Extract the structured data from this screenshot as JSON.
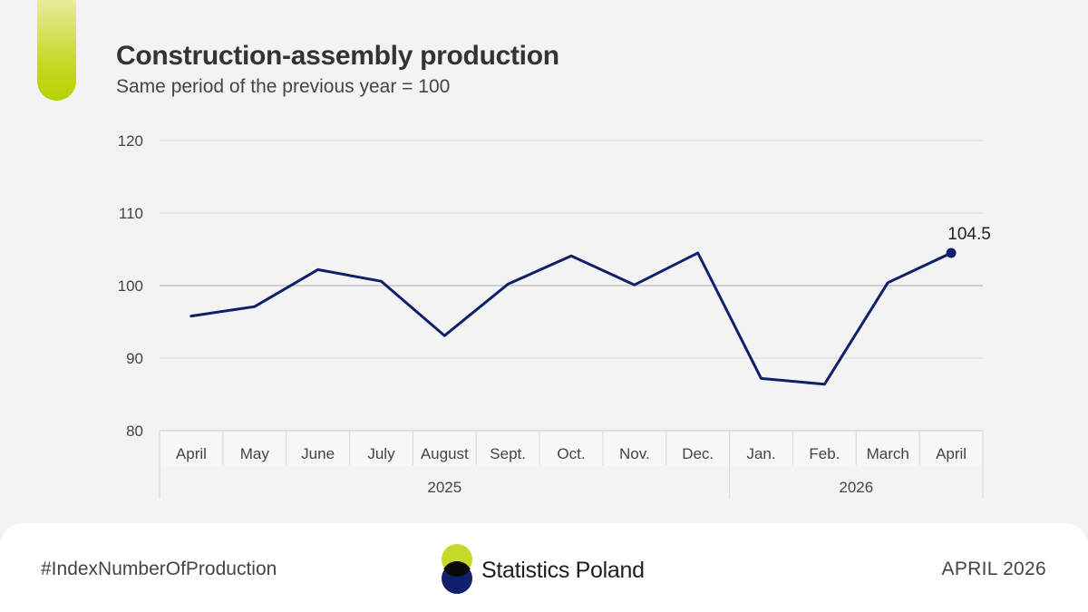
{
  "header": {
    "title": "Construction-assembly production",
    "subtitle": "Same period of the previous year = 100"
  },
  "chart_data": {
    "type": "line",
    "title": "Construction-assembly production",
    "subtitle": "Same period of the previous year = 100",
    "categories": [
      "April",
      "May",
      "June",
      "July",
      "August",
      "Sept.",
      "Oct.",
      "Nov.",
      "Dec.",
      "Jan.",
      "Feb.",
      "March",
      "April"
    ],
    "year_groups": [
      {
        "label": "2025",
        "span": 9
      },
      {
        "label": "2026",
        "span": 4
      }
    ],
    "series": [
      {
        "values": [
          95.8,
          97.1,
          102.2,
          100.6,
          93.1,
          100.2,
          104.1,
          100.1,
          104.5,
          87.2,
          86.4,
          100.4,
          104.5
        ],
        "color": "#0f1f6b"
      }
    ],
    "data_labels": [
      {
        "index": 12,
        "text": "104.5"
      }
    ],
    "yticks": [
      80,
      90,
      100,
      110,
      120
    ],
    "ylim": [
      80,
      120
    ],
    "grid": true,
    "reference_line": 100
  },
  "footer": {
    "hashtag": "#IndexNumberOfProduction",
    "logo_text": "Statistics Poland",
    "date": "APRIL 2026"
  },
  "colors": {
    "accent": "#c6d92a",
    "line": "#0f1f6b",
    "logo_green": "#c6d92a",
    "logo_navy": "#0f1f6b"
  }
}
